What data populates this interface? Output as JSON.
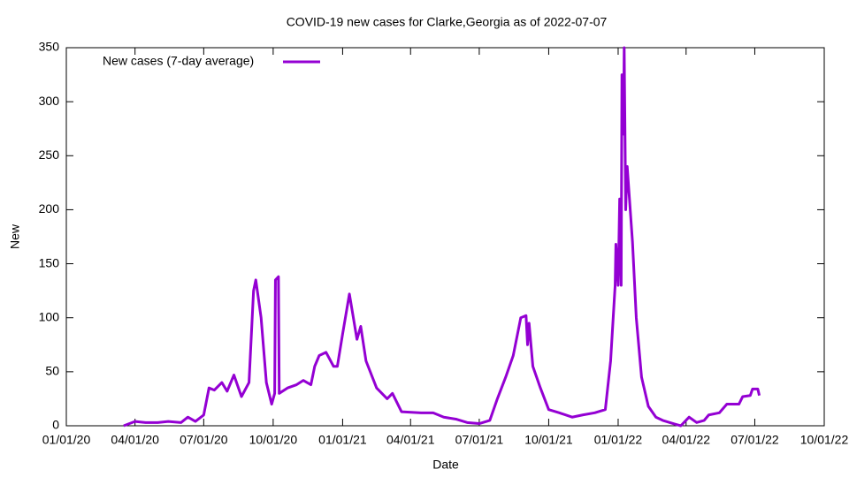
{
  "chart_data": {
    "type": "line",
    "title": "COVID-19 new cases for Clarke,Georgia as of 2022-07-07",
    "x_label": "Date",
    "y_label": "New",
    "legend": "top-left",
    "xlim": [
      "2020-01-01",
      "2022-10-01"
    ],
    "xticks": [
      {
        "value": "2020-01-01",
        "label": "01/01/20"
      },
      {
        "value": "2020-04-01",
        "label": "04/01/20"
      },
      {
        "value": "2020-07-01",
        "label": "07/01/20"
      },
      {
        "value": "2020-10-01",
        "label": "10/01/20"
      },
      {
        "value": "2021-01-01",
        "label": "01/01/21"
      },
      {
        "value": "2021-04-01",
        "label": "04/01/21"
      },
      {
        "value": "2021-07-01",
        "label": "07/01/21"
      },
      {
        "value": "2021-10-01",
        "label": "10/01/21"
      },
      {
        "value": "2022-01-01",
        "label": "01/01/22"
      },
      {
        "value": "2022-04-01",
        "label": "04/01/22"
      },
      {
        "value": "2022-07-01",
        "label": "07/01/22"
      },
      {
        "value": "2022-10-01",
        "label": "10/01/22"
      }
    ],
    "ylim": [
      0,
      350
    ],
    "yticks": [
      0,
      50,
      100,
      150,
      200,
      250,
      300,
      350
    ],
    "grid": false,
    "x": [
      "2020-03-17",
      "2020-04-01",
      "2020-04-15",
      "2020-05-01",
      "2020-05-15",
      "2020-06-01",
      "2020-06-10",
      "2020-06-20",
      "2020-07-01",
      "2020-07-08",
      "2020-07-15",
      "2020-07-25",
      "2020-08-01",
      "2020-08-10",
      "2020-08-20",
      "2020-08-30",
      "2020-09-05",
      "2020-09-08",
      "2020-09-15",
      "2020-09-22",
      "2020-09-29",
      "2020-10-03",
      "2020-10-04",
      "2020-10-08",
      "2020-10-09",
      "2020-10-20",
      "2020-11-01",
      "2020-11-10",
      "2020-11-20",
      "2020-11-25",
      "2020-12-01",
      "2020-12-10",
      "2020-12-20",
      "2020-12-25",
      "2021-01-01",
      "2021-01-10",
      "2021-01-20",
      "2021-01-25",
      "2021-02-01",
      "2021-02-15",
      "2021-03-01",
      "2021-03-08",
      "2021-03-20",
      "2021-04-15",
      "2021-05-01",
      "2021-05-15",
      "2021-06-01",
      "2021-06-15",
      "2021-07-01",
      "2021-07-15",
      "2021-07-25",
      "2021-08-05",
      "2021-08-15",
      "2021-08-25",
      "2021-09-01",
      "2021-09-03",
      "2021-09-05",
      "2021-09-10",
      "2021-09-20",
      "2021-10-01",
      "2021-10-15",
      "2021-11-01",
      "2021-11-15",
      "2021-12-01",
      "2021-12-15",
      "2021-12-22",
      "2021-12-28",
      "2021-12-29",
      "2022-01-01",
      "2022-01-03",
      "2022-01-05",
      "2022-01-06",
      "2022-01-08",
      "2022-01-09",
      "2022-01-11",
      "2022-01-13",
      "2022-01-16",
      "2022-01-20",
      "2022-01-25",
      "2022-02-01",
      "2022-02-10",
      "2022-02-20",
      "2022-03-01",
      "2022-03-15",
      "2022-03-25",
      "2022-04-05",
      "2022-04-15",
      "2022-04-25",
      "2022-05-01",
      "2022-05-15",
      "2022-05-25",
      "2022-06-10",
      "2022-06-15",
      "2022-06-25",
      "2022-06-28",
      "2022-07-05",
      "2022-07-07"
    ],
    "series": [
      {
        "name": "New cases (7-day average)",
        "color": "#9400d3",
        "values": [
          0,
          4,
          3,
          3,
          4,
          3,
          8,
          4,
          10,
          35,
          33,
          40,
          32,
          47,
          27,
          40,
          125,
          135,
          100,
          40,
          20,
          30,
          135,
          138,
          30,
          35,
          38,
          42,
          38,
          55,
          65,
          68,
          55,
          55,
          85,
          122,
          80,
          92,
          60,
          35,
          25,
          30,
          13,
          12,
          12,
          8,
          6,
          3,
          2,
          5,
          25,
          45,
          65,
          100,
          102,
          75,
          95,
          55,
          35,
          15,
          12,
          8,
          10,
          12,
          15,
          60,
          130,
          168,
          130,
          210,
          130,
          325,
          270,
          350,
          200,
          240,
          210,
          170,
          100,
          45,
          18,
          8,
          5,
          2,
          0,
          8,
          3,
          5,
          10,
          12,
          20,
          20,
          27,
          28,
          34,
          34,
          28
        ]
      }
    ]
  }
}
